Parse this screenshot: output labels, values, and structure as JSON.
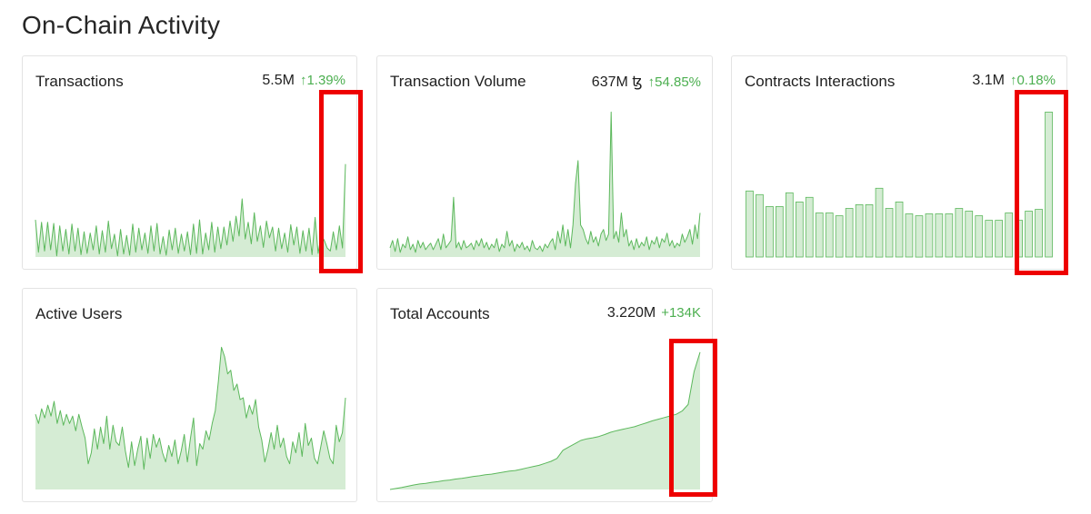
{
  "page": {
    "title": "On-Chain Activity"
  },
  "colors": {
    "fill": "#d5ecd4",
    "line": "#5cb85c",
    "up": "#4caf50",
    "highlight": "#ee0000"
  },
  "cards": [
    {
      "title": "Transactions",
      "value": "5.5M",
      "change": "↑1.39%"
    },
    {
      "title": "Transaction Volume",
      "value": "637M ꜩ",
      "change": "↑54.85%"
    },
    {
      "title": "Contracts Interactions",
      "value": "3.1M",
      "change": "↑0.18%"
    },
    {
      "title": "Active Users",
      "value": "",
      "change": ""
    },
    {
      "title": "Total Accounts",
      "value": "3.220M",
      "change": "+134K"
    }
  ],
  "chart_data": [
    {
      "type": "area",
      "title": "Transactions",
      "values": [
        0.62,
        0.08,
        0.58,
        0.1,
        0.58,
        0.12,
        0.56,
        0.02,
        0.52,
        0.1,
        0.46,
        0.05,
        0.55,
        0.1,
        0.48,
        0.04,
        0.42,
        0.06,
        0.4,
        0.12,
        0.52,
        0.05,
        0.44,
        0.08,
        0.6,
        0.14,
        0.38,
        0.02,
        0.46,
        0.05,
        0.36,
        0.03,
        0.55,
        0.08,
        0.48,
        0.12,
        0.4,
        0.06,
        0.52,
        0.1,
        0.56,
        0.05,
        0.34,
        0.03,
        0.45,
        0.12,
        0.48,
        0.06,
        0.38,
        0.1,
        0.42,
        0.04,
        0.55,
        0.06,
        0.62,
        0.05,
        0.4,
        0.12,
        0.58,
        0.08,
        0.5,
        0.14,
        0.5,
        0.2,
        0.6,
        0.26,
        0.68,
        0.35,
        0.97,
        0.3,
        0.58,
        0.22,
        0.74,
        0.26,
        0.52,
        0.16,
        0.6,
        0.32,
        0.5,
        0.1,
        0.48,
        0.14,
        0.4,
        0.08,
        0.54,
        0.2,
        0.5,
        0.06,
        0.44,
        0.1,
        0.48,
        0.04,
        0.66,
        0.06,
        0.36,
        0.28,
        0.15,
        0.1,
        0.42,
        0.12,
        0.52,
        0.15,
        1.55
      ]
    },
    {
      "type": "area",
      "title": "Transaction Volume",
      "values": [
        0.1,
        0.18,
        0.06,
        0.2,
        0.05,
        0.14,
        0.1,
        0.22,
        0.08,
        0.14,
        0.05,
        0.18,
        0.1,
        0.16,
        0.08,
        0.12,
        0.15,
        0.08,
        0.14,
        0.2,
        0.08,
        0.25,
        0.1,
        0.14,
        0.18,
        0.65,
        0.1,
        0.16,
        0.08,
        0.18,
        0.1,
        0.12,
        0.15,
        0.08,
        0.18,
        0.12,
        0.2,
        0.1,
        0.16,
        0.08,
        0.14,
        0.1,
        0.2,
        0.06,
        0.14,
        0.1,
        0.28,
        0.12,
        0.18,
        0.06,
        0.14,
        0.1,
        0.16,
        0.08,
        0.12,
        0.06,
        0.18,
        0.1,
        0.08,
        0.12,
        0.06,
        0.14,
        0.1,
        0.16,
        0.2,
        0.08,
        0.28,
        0.15,
        0.35,
        0.12,
        0.3,
        0.1,
        0.35,
        0.8,
        1.05,
        0.35,
        0.3,
        0.2,
        0.14,
        0.28,
        0.16,
        0.22,
        0.12,
        0.25,
        0.3,
        0.18,
        0.25,
        1.58,
        0.2,
        0.28,
        0.16,
        0.48,
        0.22,
        0.3,
        0.12,
        0.18,
        0.08,
        0.2,
        0.1,
        0.16,
        0.12,
        0.22,
        0.08,
        0.18,
        0.14,
        0.22,
        0.1,
        0.2,
        0.16,
        0.26,
        0.12,
        0.18,
        0.1,
        0.15,
        0.12,
        0.25,
        0.16,
        0.22,
        0.3,
        0.14,
        0.35,
        0.2,
        0.48
      ]
    },
    {
      "type": "bar",
      "title": "Contracts Interactions",
      "values": [
        0.72,
        0.68,
        0.55,
        0.55,
        0.7,
        0.6,
        0.65,
        0.48,
        0.48,
        0.45,
        0.53,
        0.57,
        0.57,
        0.75,
        0.53,
        0.6,
        0.47,
        0.45,
        0.47,
        0.47,
        0.47,
        0.53,
        0.5,
        0.45,
        0.4,
        0.4,
        0.48,
        0.4,
        0.5,
        0.52,
        1.58
      ]
    },
    {
      "type": "area",
      "title": "Active Users",
      "values": [
        0.82,
        0.72,
        0.88,
        0.78,
        0.92,
        0.8,
        0.96,
        0.72,
        0.86,
        0.7,
        0.82,
        0.72,
        0.8,
        0.64,
        0.82,
        0.68,
        0.56,
        0.28,
        0.4,
        0.66,
        0.44,
        0.68,
        0.5,
        0.8,
        0.44,
        0.7,
        0.52,
        0.48,
        0.68,
        0.42,
        0.24,
        0.52,
        0.26,
        0.44,
        0.58,
        0.22,
        0.56,
        0.34,
        0.6,
        0.46,
        0.56,
        0.4,
        0.3,
        0.48,
        0.36,
        0.54,
        0.28,
        0.42,
        0.6,
        0.3,
        0.56,
        0.78,
        0.26,
        0.5,
        0.44,
        0.64,
        0.54,
        0.72,
        0.86,
        1.18,
        1.55,
        1.45,
        1.26,
        1.3,
        1.08,
        1.15,
        0.98,
        1.0,
        0.78,
        0.92,
        0.82,
        0.98,
        0.68,
        0.54,
        0.3,
        0.44,
        0.62,
        0.44,
        0.7,
        0.46,
        0.56,
        0.36,
        0.28,
        0.52,
        0.4,
        0.62,
        0.36,
        0.72,
        0.48,
        0.56,
        0.34,
        0.28,
        0.46,
        0.64,
        0.5,
        0.34,
        0.28,
        0.7,
        0.52,
        0.62,
        1.0
      ]
    },
    {
      "type": "area",
      "title": "Total Accounts",
      "values": [
        0.0,
        0.03,
        0.06,
        0.1,
        0.14,
        0.17,
        0.19,
        0.22,
        0.24,
        0.27,
        0.29,
        0.32,
        0.34,
        0.37,
        0.4,
        0.42,
        0.45,
        0.47,
        0.5,
        0.53,
        0.56,
        0.58,
        0.62,
        0.66,
        0.7,
        0.74,
        0.8,
        0.86,
        0.95,
        1.2,
        1.3,
        1.4,
        1.5,
        1.55,
        1.58,
        1.62,
        1.68,
        1.75,
        1.8,
        1.84,
        1.88,
        1.92,
        1.98,
        2.04,
        2.1,
        2.15,
        2.2,
        2.25,
        2.3,
        2.4,
        2.6,
        3.6,
        4.2
      ]
    }
  ]
}
